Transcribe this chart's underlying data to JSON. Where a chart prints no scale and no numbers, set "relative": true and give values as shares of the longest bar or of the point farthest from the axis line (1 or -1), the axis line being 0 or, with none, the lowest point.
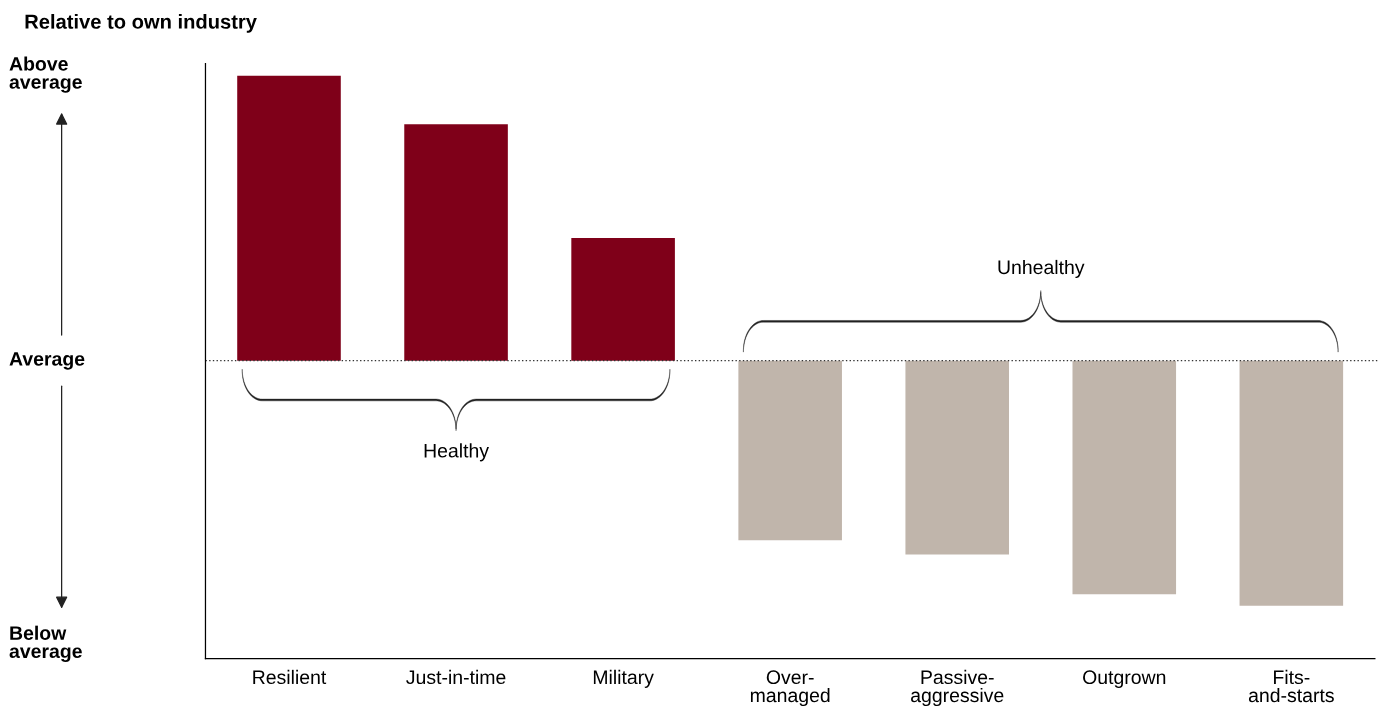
{
  "chart_data": {
    "type": "bar",
    "title": "Relative to own industry",
    "categories": [
      "Resilient",
      "Just-in-time",
      "Military",
      "Over-\nmanaged",
      "Passive-\naggressive",
      "Outgrown",
      "Fits-\nand-starts"
    ],
    "values": [
      1,
      0.83,
      0.43,
      -0.63,
      -0.68,
      -0.82,
      -0.86
    ],
    "colors": [
      "#7f0019",
      "#7f0019",
      "#7f0019",
      "#c0b5ab",
      "#c0b5ab",
      "#c0b5ab",
      "#c0b5ab"
    ],
    "relative": true,
    "ref_lines": [
      {
        "axis": "y",
        "value": 0,
        "color": "#333333",
        "line_style": "dotted"
      }
    ],
    "annotations": [
      "Healthy",
      "Unhealthy",
      "Above\naverage",
      "Average",
      "Below\naverage"
    ],
    "grid": false,
    "legend": false
  }
}
